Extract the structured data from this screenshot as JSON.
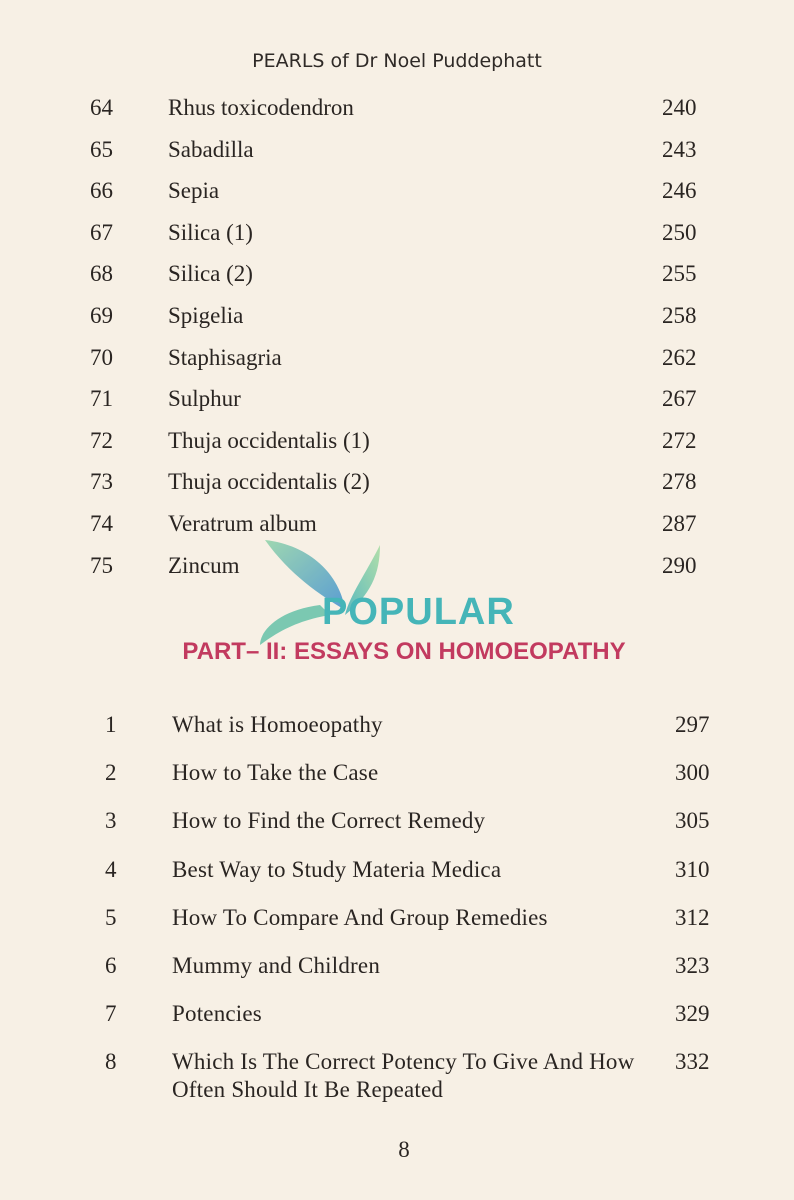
{
  "header": {
    "running_title": "PEARLS of Dr Noel Puddephatt"
  },
  "part_one_entries": [
    {
      "num": "64",
      "title": "Rhus toxicodendron",
      "page": "240"
    },
    {
      "num": "65",
      "title": "Sabadilla",
      "page": "243"
    },
    {
      "num": "66",
      "title": "Sepia",
      "page": "246"
    },
    {
      "num": "67",
      "title": "Silica (1)",
      "page": "250"
    },
    {
      "num": "68",
      "title": "Silica (2)",
      "page": "255"
    },
    {
      "num": "69",
      "title": "Spigelia",
      "page": "258"
    },
    {
      "num": "70",
      "title": "Staphisagria",
      "page": "262"
    },
    {
      "num": "71",
      "title": "Sulphur",
      "page": "267"
    },
    {
      "num": "72",
      "title": "Thuja occidentalis (1)",
      "page": "272"
    },
    {
      "num": "73",
      "title": "Thuja occidentalis (2)",
      "page": "278"
    },
    {
      "num": "74",
      "title": "Veratrum album",
      "page": "287"
    },
    {
      "num": "75",
      "title": "Zincum",
      "page": "290"
    }
  ],
  "part_two": {
    "heading": "PART– II: ESSAYS ON HOMOEOPATHY",
    "heading_color": "#c23a5f"
  },
  "part_two_entries": [
    {
      "num": "1",
      "title": "What is Homoeopathy",
      "page": "297"
    },
    {
      "num": "2",
      "title": "How to Take the Case",
      "page": "300"
    },
    {
      "num": "3",
      "title": "How to Find the Correct Remedy",
      "page": "305"
    },
    {
      "num": "4",
      "title": "Best Way to Study Materia Medica",
      "page": "310"
    },
    {
      "num": "5",
      "title": "How To Compare And Group Remedies",
      "page": "312"
    },
    {
      "num": "6",
      "title": "Mummy and Children",
      "page": "323"
    },
    {
      "num": "7",
      "title": "Potencies",
      "page": "329"
    },
    {
      "num": "8",
      "title": "Which Is The Correct Potency To Give And How Often Should It Be Repeated",
      "page": "332"
    }
  ],
  "watermark": {
    "text": "POPULAR",
    "icon": "leaf-logo-icon",
    "color": "#45b5b8"
  },
  "footer": {
    "page_number": "8"
  }
}
